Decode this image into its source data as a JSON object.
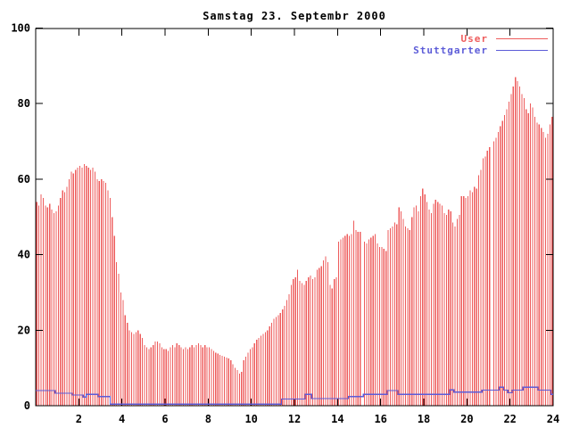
{
  "header": {
    "title": "Samstag 23. Septembr 2000"
  },
  "legend": [
    {
      "label": "User",
      "color": "#ee5c5c"
    },
    {
      "label": "Stuttgarter",
      "color": "#5c5cd8"
    }
  ],
  "colors": {
    "user": "#ee5c5c",
    "stuttgarter": "#5c5cd8",
    "axis": "#000000",
    "background": "#ffffff"
  },
  "chart_data": {
    "type": "bar",
    "title": "Samstag 23. Septembr 2000",
    "xlabel": "",
    "ylabel": "",
    "xlim": [
      0,
      24
    ],
    "ylim": [
      0,
      100
    ],
    "x_ticks": [
      2,
      4,
      6,
      8,
      10,
      12,
      14,
      16,
      18,
      20,
      22,
      24
    ],
    "y_ticks": [
      0,
      20,
      40,
      60,
      80,
      100
    ],
    "grid": false,
    "legend_position": "top-right-inside",
    "series": [
      {
        "name": "User",
        "style": "impulses",
        "color": "#ee5c5c",
        "x0": 0.05,
        "dx": 0.1,
        "values": [
          54,
          53,
          56,
          55,
          53,
          52.5,
          53.5,
          52,
          51,
          51.5,
          53,
          55,
          57,
          56.5,
          58,
          60,
          62,
          61.5,
          62.5,
          63,
          63.5,
          63,
          64,
          63.5,
          63,
          62.5,
          63,
          62,
          60,
          59.5,
          60,
          59.5,
          59,
          57,
          55,
          50,
          45,
          38,
          35,
          30,
          28,
          24,
          22,
          20,
          19.5,
          19,
          19.5,
          20,
          19,
          18,
          16,
          15.5,
          15,
          15.5,
          16,
          17,
          17,
          16.5,
          15.5,
          15,
          15,
          14.5,
          15.5,
          16,
          15.5,
          16.5,
          16,
          15.5,
          15,
          15.5,
          15,
          15.5,
          16,
          15.5,
          16,
          16.5,
          16,
          15.5,
          16,
          15.5,
          15.5,
          15,
          14.5,
          14,
          13.8,
          13.5,
          13.2,
          13,
          12.8,
          12.5,
          12,
          11,
          10,
          9.5,
          8.5,
          9,
          12,
          13,
          14,
          15,
          15.5,
          16.5,
          17.5,
          18,
          18.5,
          19,
          19.5,
          20,
          21,
          22,
          23,
          23.5,
          24,
          24.5,
          25.5,
          26.5,
          28,
          29.5,
          32,
          33.5,
          34,
          36,
          33,
          32.5,
          32,
          33,
          34,
          34.5,
          33.5,
          34,
          36,
          36.5,
          37,
          38.5,
          39.5,
          38,
          32,
          31,
          33.5,
          34,
          43.5,
          44,
          44.5,
          45,
          45.5,
          45,
          45.5,
          49,
          46.5,
          46,
          46,
          null,
          43.5,
          43,
          44,
          44.5,
          45,
          45.5,
          43,
          42,
          42,
          41.5,
          41,
          46.5,
          47,
          47.5,
          48.5,
          48,
          52.5,
          51.5,
          49.5,
          47.5,
          47,
          46.5,
          50,
          52.5,
          53,
          51.5,
          55.5,
          57.5,
          56,
          54,
          52,
          51,
          53.5,
          54.5,
          54,
          53.5,
          53,
          51,
          50.5,
          52,
          51.5,
          48.5,
          47.5,
          49.5,
          50.5,
          55.5,
          55.5,
          55,
          55.5,
          57,
          56.5,
          58,
          57.5,
          61,
          62.5,
          65.5,
          66,
          67.5,
          68.5,
          null,
          70,
          71,
          72.5,
          74,
          75.5,
          77,
          78.5,
          80.5,
          82.5,
          84.5,
          87,
          86,
          84.5,
          82.5,
          81.5,
          78.5,
          77.5,
          80,
          79,
          76.5,
          75,
          74.5,
          73.5,
          72.5,
          71,
          72,
          74.5,
          76.5
        ]
      },
      {
        "name": "Stuttgarter",
        "style": "step-line",
        "color": "#5c5cd8",
        "points": [
          [
            0,
            4
          ],
          [
            0.8,
            4
          ],
          [
            0.9,
            3.3
          ],
          [
            1.6,
            3.3
          ],
          [
            1.7,
            2.8
          ],
          [
            2.1,
            2.8
          ],
          [
            2.2,
            2.3
          ],
          [
            2.35,
            3
          ],
          [
            2.75,
            3
          ],
          [
            2.9,
            2.4
          ],
          [
            3.35,
            2.4
          ],
          [
            3.45,
            0.4
          ],
          [
            11.3,
            0.4
          ],
          [
            11.4,
            1.8
          ],
          [
            12.4,
            1.8
          ],
          [
            12.5,
            3
          ],
          [
            12.7,
            3
          ],
          [
            12.8,
            1.9
          ],
          [
            14.4,
            1.9
          ],
          [
            14.5,
            2.4
          ],
          [
            15.1,
            2.4
          ],
          [
            15.2,
            3
          ],
          [
            16.2,
            3
          ],
          [
            16.3,
            4
          ],
          [
            16.7,
            4
          ],
          [
            16.8,
            3
          ],
          [
            19.1,
            3
          ],
          [
            19.2,
            4.2
          ],
          [
            19.4,
            3.6
          ],
          [
            20.6,
            3.6
          ],
          [
            20.7,
            4.1
          ],
          [
            21.4,
            4.1
          ],
          [
            21.5,
            4.9
          ],
          [
            21.7,
            4.1
          ],
          [
            21.9,
            3.4
          ],
          [
            22.1,
            4.1
          ],
          [
            22.5,
            4.1
          ],
          [
            22.6,
            4.9
          ],
          [
            23.2,
            4.9
          ],
          [
            23.3,
            4.1
          ],
          [
            23.8,
            4.1
          ],
          [
            23.9,
            3
          ],
          [
            24,
            3
          ]
        ]
      }
    ]
  }
}
